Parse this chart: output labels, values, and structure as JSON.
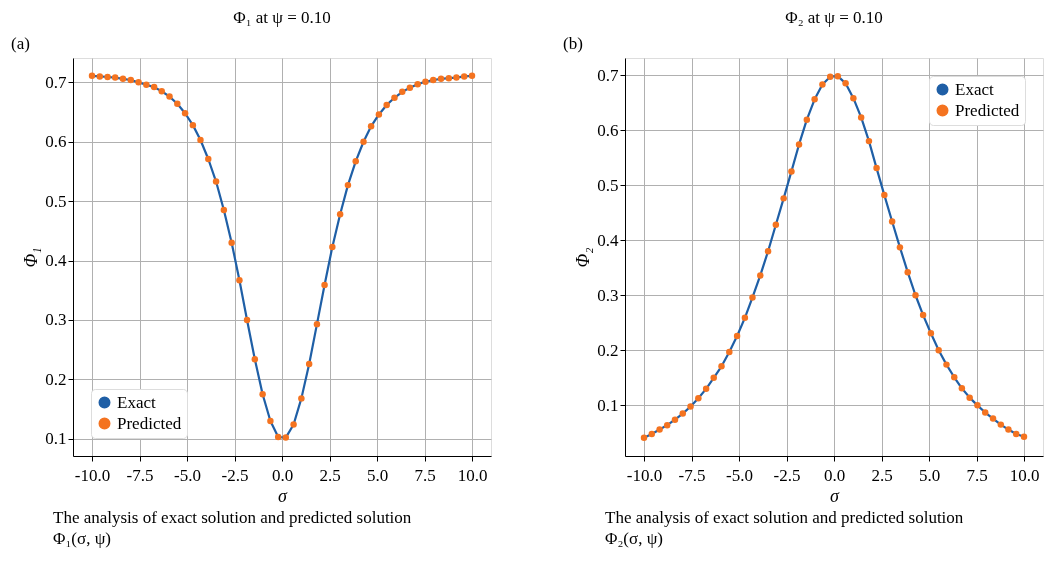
{
  "chart_data": [
    {
      "type": "line",
      "title": "Φ₁ at ψ = 0.10",
      "xlabel": "σ",
      "ylabel": "Φ₁",
      "annotations": [
        "(a)",
        "The analysis of exact solution and predicted solution",
        "Φ₁(σ, ψ)"
      ],
      "x": [
        -10,
        -9.59,
        -9.18,
        -8.78,
        -8.37,
        -7.96,
        -7.55,
        -7.14,
        -6.73,
        -6.33,
        -5.92,
        -5.51,
        -5.1,
        -4.69,
        -4.29,
        -3.88,
        -3.47,
        -3.06,
        -2.65,
        -2.24,
        -1.84,
        -1.43,
        -1.02,
        -0.61,
        -0.2,
        0.2,
        0.61,
        1.02,
        1.43,
        1.84,
        2.24,
        2.65,
        3.06,
        3.47,
        3.88,
        4.29,
        4.69,
        5.1,
        5.51,
        5.92,
        6.33,
        6.73,
        7.14,
        7.55,
        7.96,
        8.37,
        8.78,
        9.18,
        9.59,
        10
      ],
      "series": [
        {
          "name": "Exact",
          "type": "line",
          "color": "#1f5fa6",
          "line_style": "solid",
          "values": [
            0.711,
            0.71,
            0.709,
            0.708,
            0.706,
            0.704,
            0.7,
            0.696,
            0.692,
            0.685,
            0.676,
            0.664,
            0.648,
            0.628,
            0.603,
            0.571,
            0.533,
            0.485,
            0.43,
            0.367,
            0.3,
            0.234,
            0.175,
            0.13,
            0.103,
            0.102,
            0.124,
            0.168,
            0.226,
            0.293,
            0.359,
            0.423,
            0.478,
            0.527,
            0.567,
            0.6,
            0.626,
            0.646,
            0.662,
            0.674,
            0.684,
            0.691,
            0.697,
            0.701,
            0.704,
            0.706,
            0.707,
            0.708,
            0.71,
            0.711
          ]
        },
        {
          "name": "Predicted",
          "type": "scatter",
          "color": "#f47320",
          "marker": "circle",
          "values": [
            0.711,
            0.71,
            0.709,
            0.708,
            0.706,
            0.704,
            0.7,
            0.696,
            0.692,
            0.685,
            0.676,
            0.664,
            0.648,
            0.628,
            0.603,
            0.571,
            0.533,
            0.485,
            0.43,
            0.367,
            0.3,
            0.234,
            0.175,
            0.13,
            0.103,
            0.102,
            0.124,
            0.168,
            0.226,
            0.293,
            0.359,
            0.423,
            0.478,
            0.527,
            0.567,
            0.6,
            0.626,
            0.646,
            0.662,
            0.674,
            0.684,
            0.691,
            0.697,
            0.701,
            0.704,
            0.706,
            0.707,
            0.708,
            0.71,
            0.711
          ]
        }
      ],
      "xlim": [
        -11,
        11
      ],
      "ylim": [
        0.071,
        0.741
      ],
      "xticks": [
        {
          "value": -10,
          "label": "-10.0"
        },
        -7.5,
        {
          "value": -5,
          "label": "-5.0"
        },
        -2.5,
        {
          "value": 0,
          "label": "0.0"
        },
        2.5,
        {
          "value": 5,
          "label": "5.0"
        },
        7.5,
        {
          "value": 10,
          "label": "10.0"
        }
      ],
      "yticks": [
        0.1,
        0.2,
        0.3,
        0.4,
        0.5,
        0.6,
        0.7
      ],
      "grid": true,
      "legend": "bottom left"
    },
    {
      "type": "line",
      "title": "Φ₂ at ψ = 0.10",
      "xlabel": "σ",
      "ylabel": "Φ₂",
      "annotations": [
        "(b)",
        "The analysis of exact solution and predicted solution",
        "Φ₂(σ, ψ)"
      ],
      "x": [
        -10,
        -9.59,
        -9.18,
        -8.78,
        -8.37,
        -7.96,
        -7.55,
        -7.14,
        -6.73,
        -6.33,
        -5.92,
        -5.51,
        -5.1,
        -4.69,
        -4.29,
        -3.88,
        -3.47,
        -3.06,
        -2.65,
        -2.24,
        -1.84,
        -1.43,
        -1.02,
        -0.61,
        -0.2,
        0.2,
        0.61,
        1.02,
        1.43,
        1.84,
        2.24,
        2.65,
        3.06,
        3.47,
        3.88,
        4.29,
        4.69,
        5.1,
        5.51,
        5.92,
        6.33,
        6.73,
        7.14,
        7.55,
        7.96,
        8.37,
        8.78,
        9.18,
        9.59,
        10
      ],
      "series": [
        {
          "name": "Exact",
          "type": "line",
          "color": "#1f5fa6",
          "line_style": "solid",
          "values": [
            0.041,
            0.048,
            0.056,
            0.064,
            0.074,
            0.085,
            0.098,
            0.113,
            0.13,
            0.15,
            0.171,
            0.197,
            0.226,
            0.259,
            0.296,
            0.336,
            0.38,
            0.428,
            0.476,
            0.525,
            0.574,
            0.619,
            0.656,
            0.683,
            0.697,
            0.698,
            0.685,
            0.658,
            0.623,
            0.58,
            0.531,
            0.482,
            0.434,
            0.387,
            0.342,
            0.3,
            0.264,
            0.231,
            0.2,
            0.174,
            0.151,
            0.131,
            0.114,
            0.1,
            0.087,
            0.076,
            0.065,
            0.056,
            0.048,
            0.043
          ]
        },
        {
          "name": "Predicted",
          "type": "scatter",
          "color": "#f47320",
          "marker": "circle",
          "values": [
            0.041,
            0.048,
            0.056,
            0.064,
            0.074,
            0.085,
            0.098,
            0.113,
            0.13,
            0.15,
            0.171,
            0.197,
            0.226,
            0.259,
            0.296,
            0.336,
            0.38,
            0.428,
            0.476,
            0.525,
            0.574,
            0.619,
            0.656,
            0.683,
            0.697,
            0.698,
            0.685,
            0.658,
            0.623,
            0.58,
            0.531,
            0.482,
            0.434,
            0.387,
            0.342,
            0.3,
            0.264,
            0.231,
            0.2,
            0.174,
            0.151,
            0.131,
            0.114,
            0.1,
            0.087,
            0.076,
            0.065,
            0.056,
            0.048,
            0.043
          ]
        }
      ],
      "xlim": [
        -11,
        11
      ],
      "ylim": [
        0.008,
        0.731
      ],
      "xticks": [
        {
          "value": -10,
          "label": "-10.0"
        },
        -7.5,
        {
          "value": -5,
          "label": "-5.0"
        },
        -2.5,
        {
          "value": 0,
          "label": "0.0"
        },
        2.5,
        {
          "value": 5,
          "label": "5.0"
        },
        7.5,
        {
          "value": 10,
          "label": "10.0"
        }
      ],
      "yticks": [
        0.1,
        0.2,
        0.3,
        0.4,
        0.5,
        0.6,
        0.7
      ],
      "grid": true,
      "legend": "top right"
    }
  ]
}
